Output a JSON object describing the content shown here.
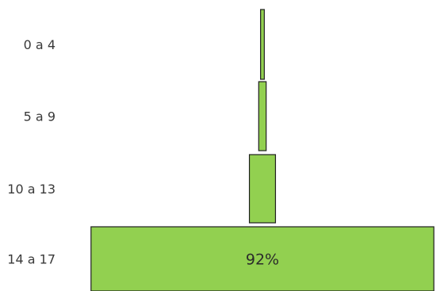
{
  "chart_data": {
    "type": "bar",
    "orientation": "horizontal",
    "layout": "centered",
    "categories": [
      "0 a 4",
      "5 a 9",
      "10 a 13",
      "14 a 17"
    ],
    "values": [
      1,
      2,
      7,
      92
    ],
    "unit": "%",
    "data_labels": [
      "",
      "",
      "",
      "92%"
    ],
    "colors": {
      "bar_fill": "#92d050",
      "bar_stroke": "#1f1f1f",
      "text": "#3a3a3a"
    },
    "grid": false,
    "legend": "none"
  }
}
